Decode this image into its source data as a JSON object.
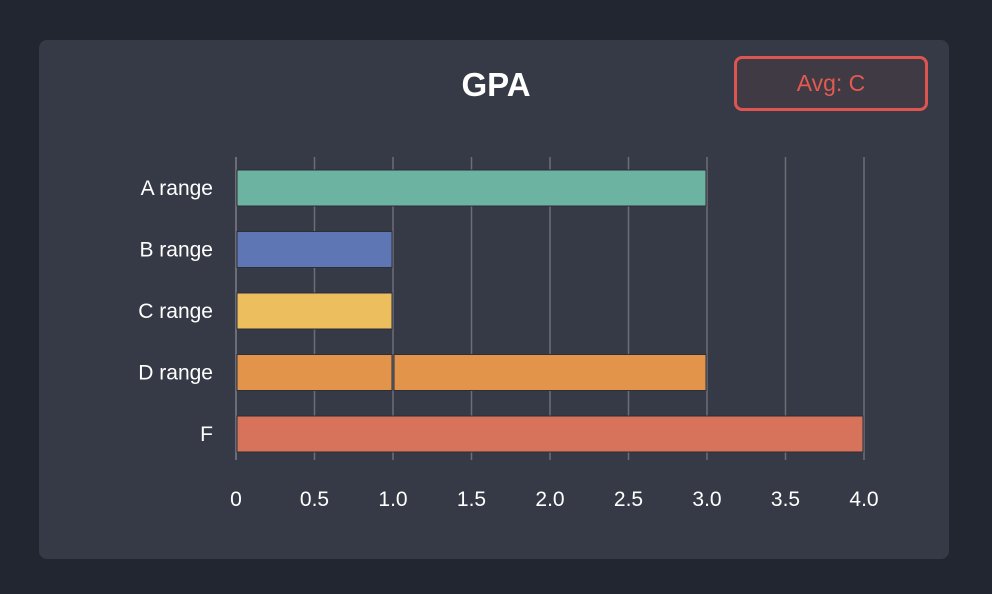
{
  "title": "GPA",
  "badge": {
    "label": "Avg: C",
    "color": "#dd5550"
  },
  "background": "#212630",
  "card_color": "#363a46",
  "chart_data": {
    "type": "bar",
    "orientation": "horizontal",
    "stacked": true,
    "title": "GPA",
    "xlabel": "",
    "ylabel": "",
    "xlim": [
      0,
      4.0
    ],
    "grid": true,
    "x_ticks": [
      "0",
      "0.5",
      "1.0",
      "1.5",
      "2.0",
      "2.5",
      "3.0",
      "3.5",
      "4.0"
    ],
    "x_tick_values": [
      0,
      0.5,
      1.0,
      1.5,
      2.0,
      2.5,
      3.0,
      3.5,
      4.0
    ],
    "categories": [
      {
        "label": "A range",
        "color": "#6cb3a2",
        "segments": [
          3.0
        ]
      },
      {
        "label": "B range",
        "color": "#5f76b5",
        "segments": [
          1.0
        ]
      },
      {
        "label": "C range",
        "color": "#edbe5e",
        "segments": [
          1.0
        ]
      },
      {
        "label": "D range",
        "color": "#e3944b",
        "segments": [
          1.0,
          2.0
        ]
      },
      {
        "label": "F",
        "color": "#d6735a",
        "segments": [
          4.0
        ]
      }
    ]
  }
}
